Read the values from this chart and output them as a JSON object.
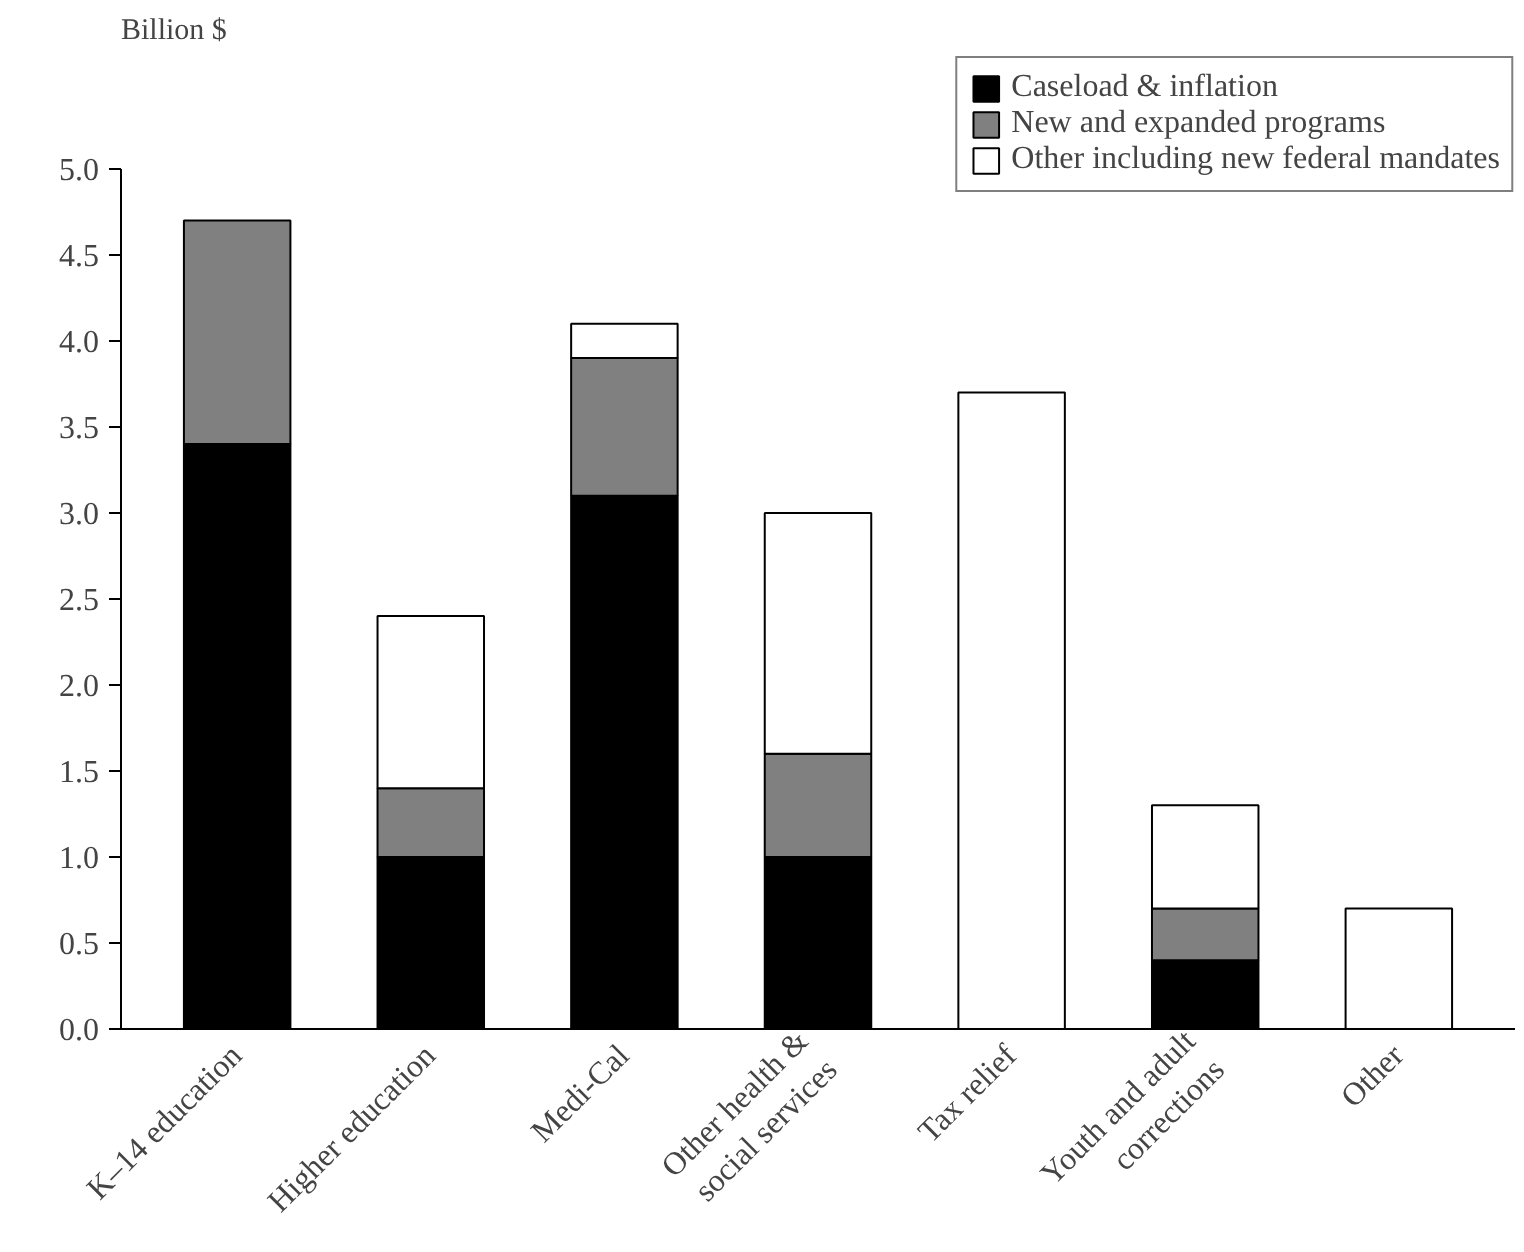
{
  "chart_data": {
    "type": "bar",
    "stacked": true,
    "ylabel": "Billion $",
    "categories": [
      "K–14 education",
      "Higher education",
      "Medi-Cal",
      "Other health &\nsocial services",
      "Tax relief",
      "Youth and adult\ncorrections",
      "Other"
    ],
    "series": [
      {
        "name": "Caseload & inflation",
        "color": "#000000",
        "values": [
          3.4,
          1.0,
          3.1,
          1.0,
          0,
          0.4,
          0
        ]
      },
      {
        "name": "New and expanded programs",
        "color": "#808080",
        "values": [
          1.3,
          0.4,
          0.8,
          0.6,
          0,
          0.3,
          0
        ]
      },
      {
        "name": "Other including new federal mandates",
        "color": "#ffffff",
        "values": [
          0,
          1.0,
          0.2,
          1.4,
          3.7,
          0.6,
          0.7
        ]
      }
    ],
    "ylim": [
      0,
      5
    ],
    "yticks": [
      {
        "value": 0,
        "label": "0.0"
      },
      {
        "value": 0.5,
        "label": "0.5"
      },
      {
        "value": 1,
        "label": "1.0"
      },
      {
        "value": 1.5,
        "label": "1.5"
      },
      {
        "value": 2,
        "label": "2.0"
      },
      {
        "value": 2.5,
        "label": "2.5"
      },
      {
        "value": 3,
        "label": "3.0"
      },
      {
        "value": 3.5,
        "label": "3.5"
      },
      {
        "value": 4,
        "label": "4.0"
      },
      {
        "value": 4.5,
        "label": "4.5"
      },
      {
        "value": 5,
        "label": "5.0"
      }
    ],
    "grid": false,
    "legend": "top right"
  }
}
